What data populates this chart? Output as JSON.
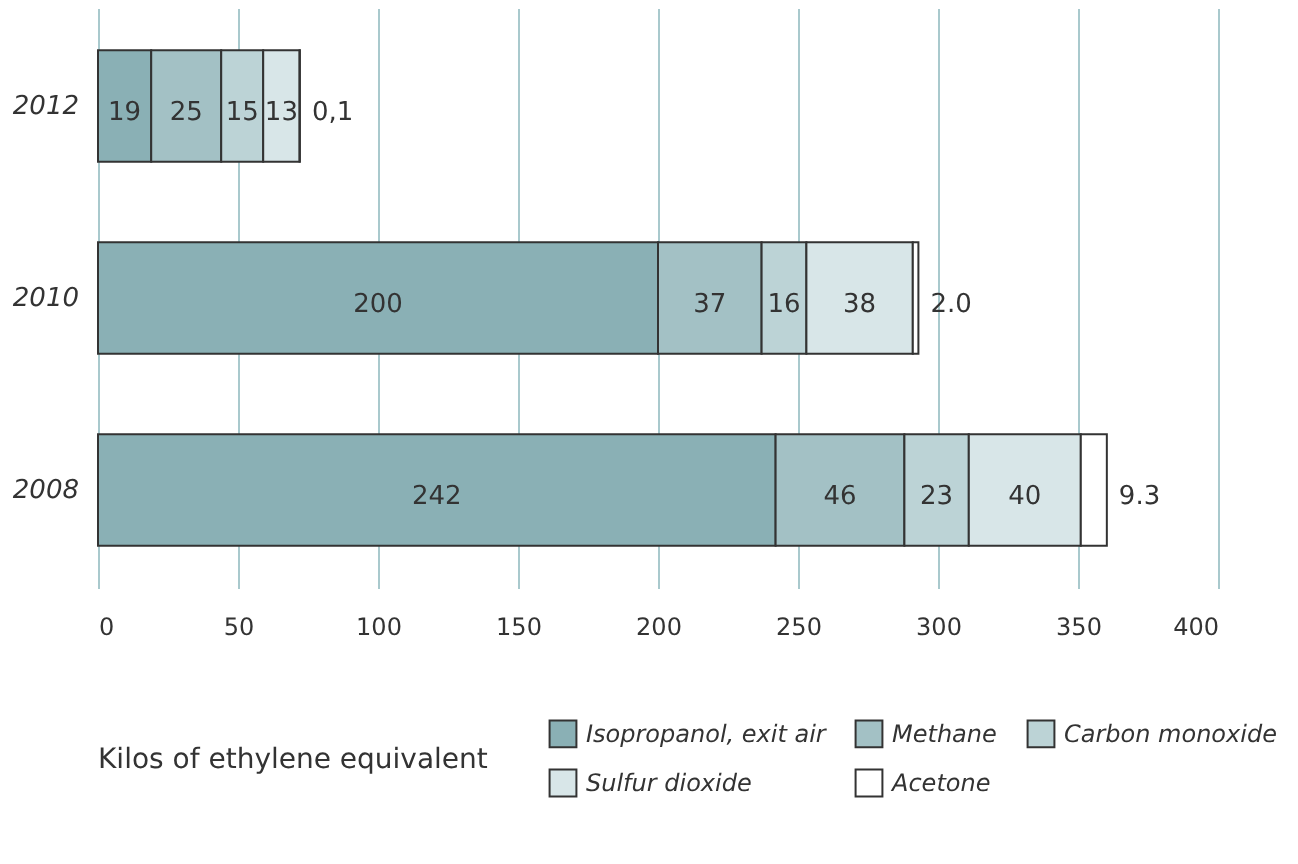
{
  "chart_data": {
    "type": "bar",
    "orientation": "horizontal",
    "stacked": true,
    "categories": [
      "2012",
      "2010",
      "2008"
    ],
    "series": [
      {
        "name": "Isopropanol, exit air",
        "color": "#8ab0b5",
        "values": [
          19,
          200,
          242
        ],
        "value_labels": [
          "19",
          "200",
          "242"
        ]
      },
      {
        "name": "Methane",
        "color": "#a3c1c5",
        "values": [
          25,
          37,
          46
        ],
        "value_labels": [
          "25",
          "37",
          "46"
        ]
      },
      {
        "name": "Carbon monoxide",
        "color": "#bcd3d6",
        "values": [
          15,
          16,
          23
        ],
        "value_labels": [
          "15",
          "16",
          "23"
        ]
      },
      {
        "name": "Sulfur dioxide",
        "color": "#d8e6e8",
        "values": [
          13,
          38,
          40
        ],
        "value_labels": [
          "13",
          "38",
          "40"
        ]
      },
      {
        "name": "Acetone",
        "color": "#ffffff",
        "values": [
          0.1,
          2.0,
          9.3
        ],
        "value_labels": [
          "0,1",
          "2.0",
          "9.3"
        ]
      }
    ],
    "xlim": [
      0,
      400
    ],
    "xticks": [
      0,
      50,
      100,
      150,
      200,
      250,
      300,
      350,
      400
    ],
    "grid": "x",
    "legend": "bottom",
    "legend_title": "Kilos of ethylene equivalent"
  }
}
